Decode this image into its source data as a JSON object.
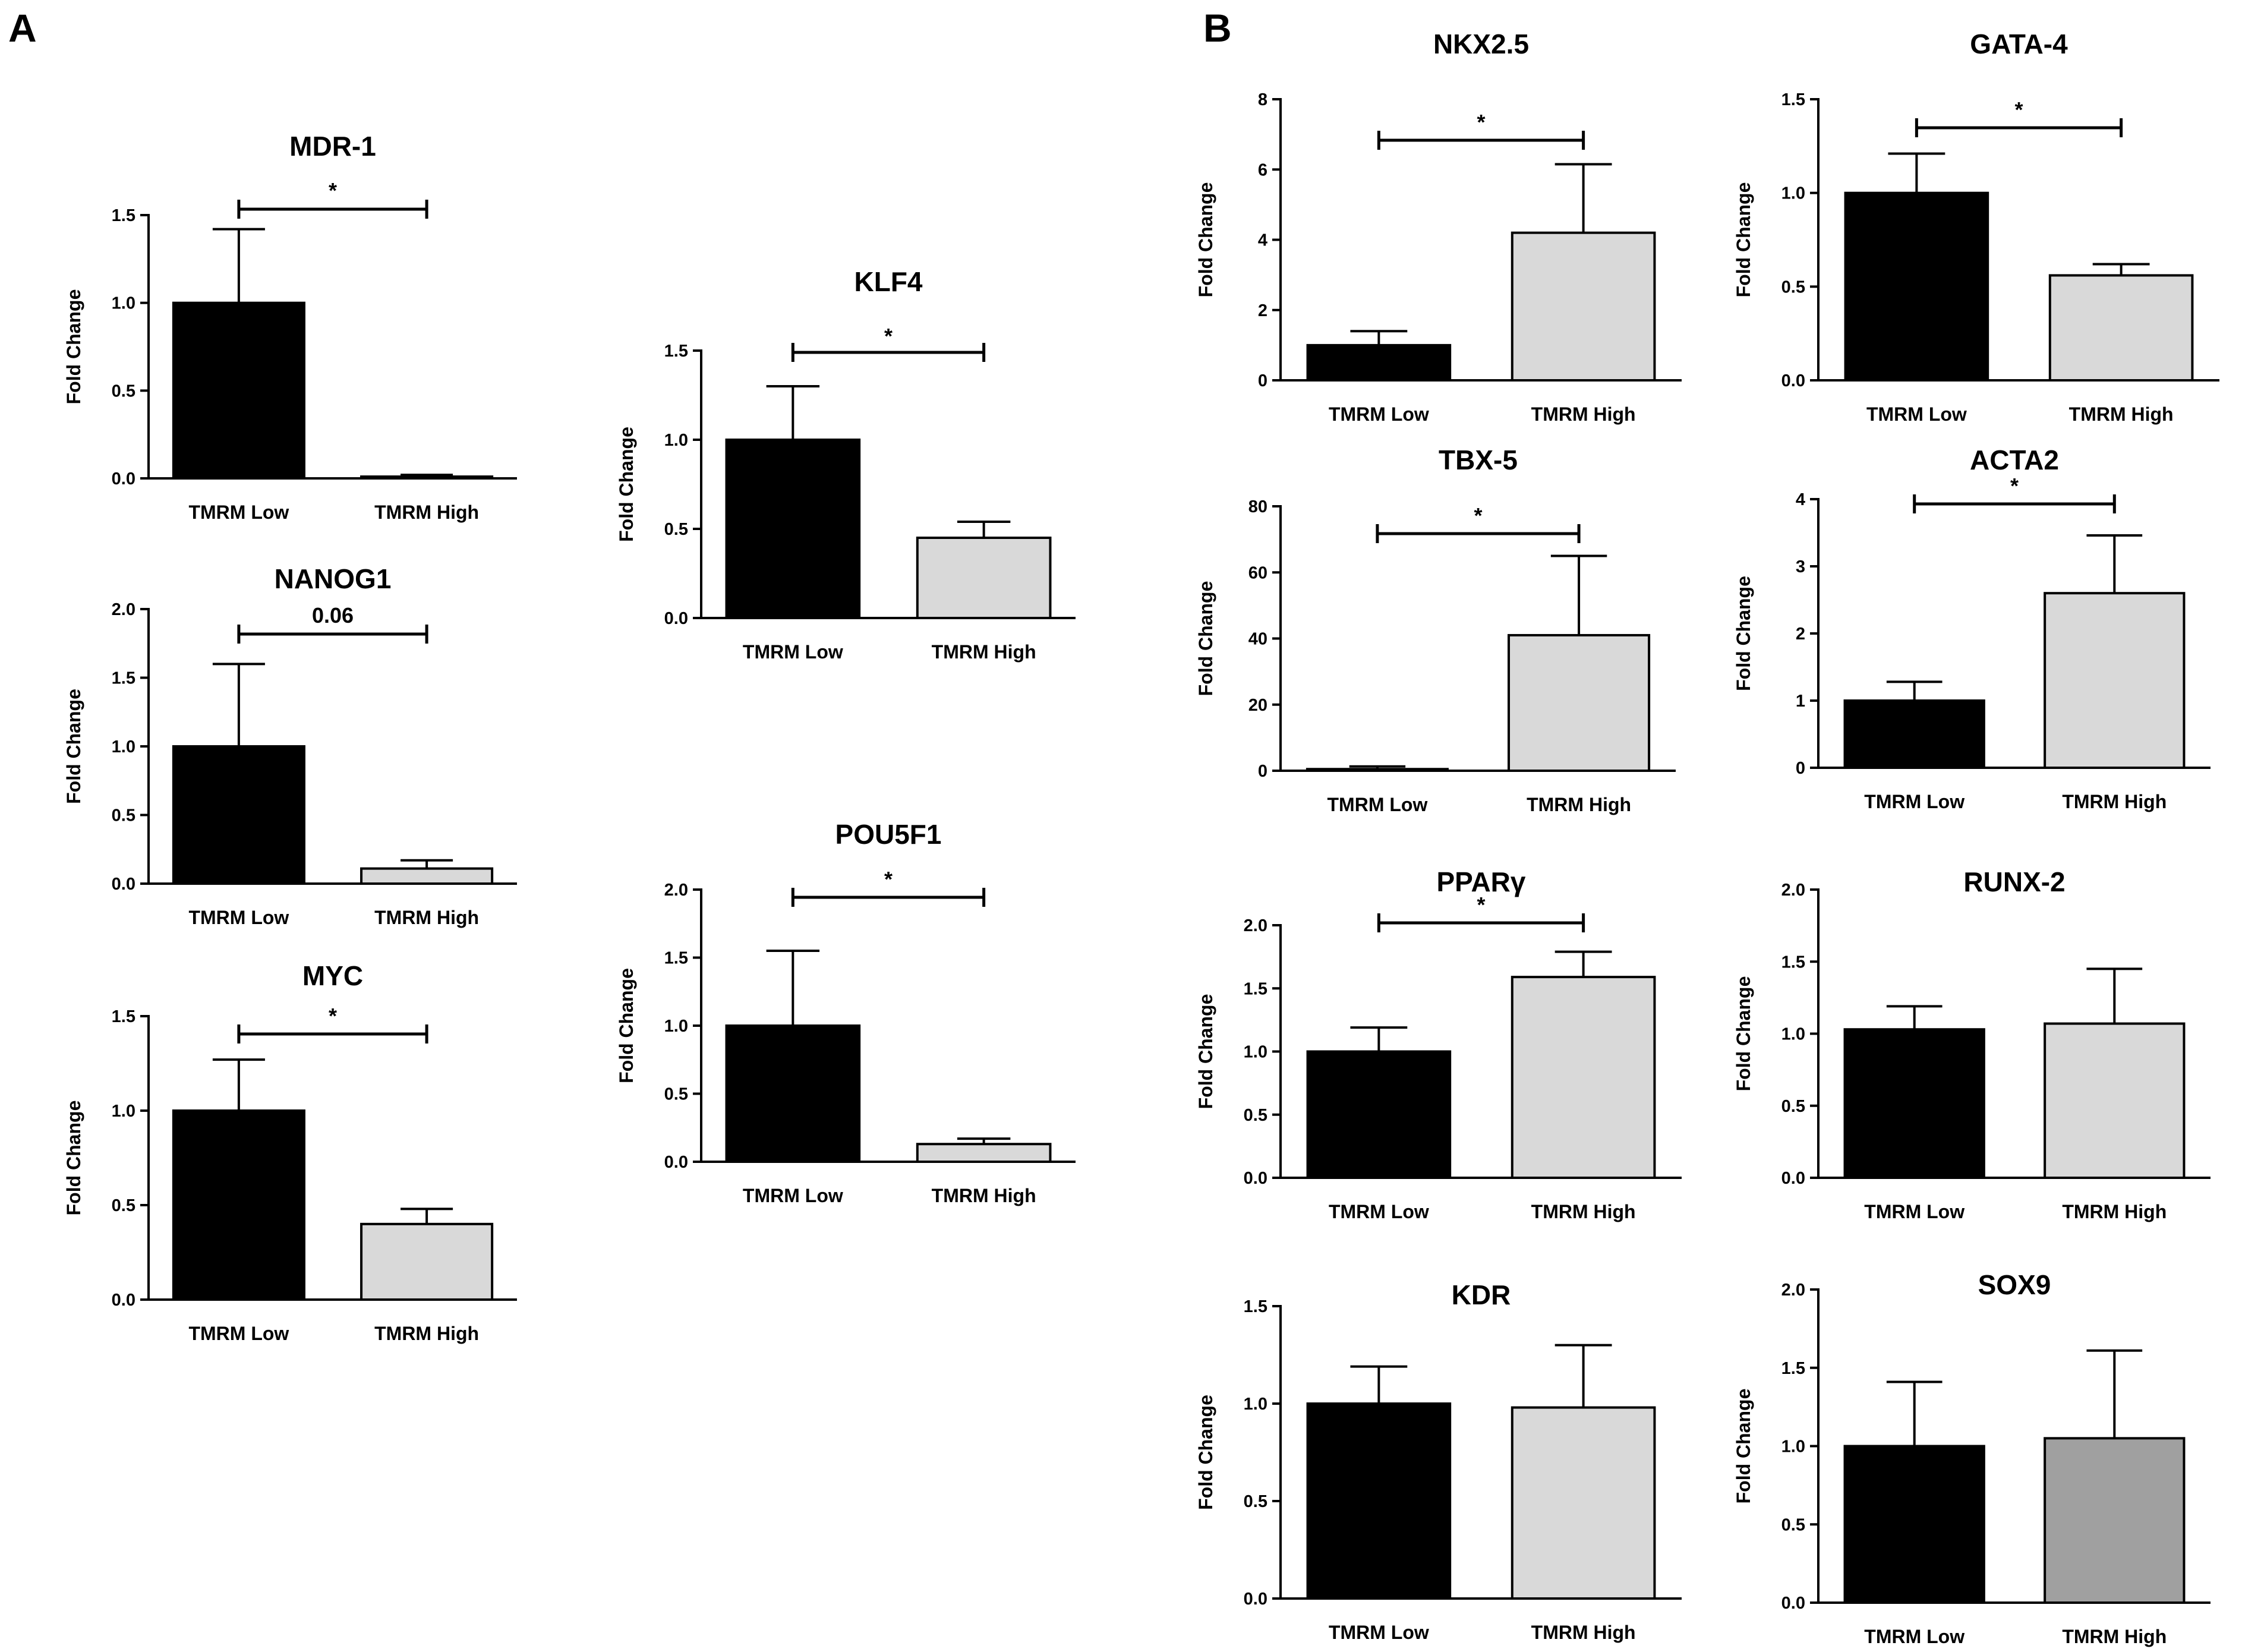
{
  "panels": [
    {
      "id": "A",
      "label": "A"
    },
    {
      "id": "B",
      "label": "B"
    }
  ],
  "colors": {
    "low": "#000000",
    "high": "#d9d9d9",
    "high_alt": "#a0a0a0",
    "axis": "#000000"
  },
  "chart_data": [
    {
      "id": "mdr1",
      "panel": "A",
      "type": "bar",
      "title": "MDR-1",
      "xlabel": "",
      "ylabel": "Fold Change",
      "categories": [
        "TMRM Low",
        "TMRM High"
      ],
      "values": [
        1.0,
        0.01
      ],
      "errors": [
        0.42,
        0.01
      ],
      "ylim": [
        0,
        1.5
      ],
      "yticks": [
        0.0,
        0.5,
        1.0,
        1.5
      ],
      "ytick_labels": [
        "0.0",
        "0.5",
        "1.0",
        "1.5"
      ],
      "significance": "*"
    },
    {
      "id": "nanog1",
      "panel": "A",
      "type": "bar",
      "title": "NANOG1",
      "xlabel": "",
      "ylabel": "Fold Change",
      "categories": [
        "TMRM Low",
        "TMRM High"
      ],
      "values": [
        1.0,
        0.11
      ],
      "errors": [
        0.6,
        0.06
      ],
      "ylim": [
        0,
        2.0
      ],
      "yticks": [
        0.0,
        0.5,
        1.0,
        1.5,
        2.0
      ],
      "ytick_labels": [
        "0.0",
        "0.5",
        "1.0",
        "1.5",
        "2.0"
      ],
      "significance": "0.06"
    },
    {
      "id": "myc",
      "panel": "A",
      "type": "bar",
      "title": "MYC",
      "xlabel": "",
      "ylabel": "Fold Change",
      "categories": [
        "TMRM Low",
        "TMRM High"
      ],
      "values": [
        1.0,
        0.4
      ],
      "errors": [
        0.27,
        0.08
      ],
      "ylim": [
        0,
        1.5
      ],
      "yticks": [
        0.0,
        0.5,
        1.0,
        1.5
      ],
      "ytick_labels": [
        "0.0",
        "0.5",
        "1.0",
        "1.5"
      ],
      "significance": "*"
    },
    {
      "id": "klf4",
      "panel": "A",
      "type": "bar",
      "title": "KLF4",
      "xlabel": "",
      "ylabel": "Fold Change",
      "categories": [
        "TMRM Low",
        "TMRM High"
      ],
      "values": [
        1.0,
        0.45
      ],
      "errors": [
        0.3,
        0.09
      ],
      "ylim": [
        0,
        1.5
      ],
      "yticks": [
        0.0,
        0.5,
        1.0,
        1.5
      ],
      "ytick_labels": [
        "0.0",
        "0.5",
        "1.0",
        "1.5"
      ],
      "significance": "*"
    },
    {
      "id": "pou5f1",
      "panel": "A",
      "type": "bar",
      "title": "POU5F1",
      "xlabel": "",
      "ylabel": "Fold Change",
      "categories": [
        "TMRM Low",
        "TMRM High"
      ],
      "values": [
        1.0,
        0.13
      ],
      "errors": [
        0.55,
        0.04
      ],
      "ylim": [
        0,
        2.0
      ],
      "yticks": [
        0.0,
        0.5,
        1.0,
        1.5,
        2.0
      ],
      "ytick_labels": [
        "0.0",
        "0.5",
        "1.0",
        "1.5",
        "2.0"
      ],
      "significance": "*"
    },
    {
      "id": "nkx25",
      "panel": "B",
      "type": "bar",
      "title": "NKX2.5",
      "xlabel": "",
      "ylabel": "Fold Change",
      "categories": [
        "TMRM Low",
        "TMRM High"
      ],
      "values": [
        1.0,
        4.2
      ],
      "errors": [
        0.4,
        1.95
      ],
      "ylim": [
        0,
        8
      ],
      "yticks": [
        0,
        2,
        4,
        6,
        8
      ],
      "ytick_labels": [
        "0",
        "2",
        "4",
        "6",
        "8"
      ],
      "significance": "*"
    },
    {
      "id": "gata4",
      "panel": "B",
      "type": "bar",
      "title": "GATA-4",
      "xlabel": "",
      "ylabel": "Fold Change",
      "categories": [
        "TMRM Low",
        "TMRM High"
      ],
      "values": [
        1.0,
        0.56
      ],
      "errors": [
        0.21,
        0.06
      ],
      "ylim": [
        0,
        1.5
      ],
      "yticks": [
        0.0,
        0.5,
        1.0,
        1.5
      ],
      "ytick_labels": [
        "0.0",
        "0.5",
        "1.0",
        "1.5"
      ],
      "significance": "*"
    },
    {
      "id": "tbx5",
      "panel": "B",
      "type": "bar",
      "title": "TBX-5",
      "xlabel": "",
      "ylabel": "Fold Change",
      "categories": [
        "TMRM Low",
        "TMRM High"
      ],
      "values": [
        0.5,
        41
      ],
      "errors": [
        0.8,
        24
      ],
      "ylim": [
        0,
        80
      ],
      "yticks": [
        0,
        20,
        40,
        60,
        80
      ],
      "ytick_labels": [
        "0",
        "20",
        "40",
        "60",
        "80"
      ],
      "significance": "*"
    },
    {
      "id": "acta2",
      "panel": "B",
      "type": "bar",
      "title": "ACTA2",
      "xlabel": "",
      "ylabel": "Fold Change",
      "categories": [
        "TMRM Low",
        "TMRM High"
      ],
      "values": [
        1.0,
        2.6
      ],
      "errors": [
        0.28,
        0.86
      ],
      "ylim": [
        0,
        4
      ],
      "yticks": [
        0,
        1,
        2,
        3,
        4
      ],
      "ytick_labels": [
        "0",
        "1",
        "2",
        "3",
        "4"
      ],
      "significance": "*"
    },
    {
      "id": "ppary",
      "panel": "B",
      "type": "bar",
      "title": "PPARγ",
      "xlabel": "",
      "ylabel": "Fold Change",
      "categories": [
        "TMRM Low",
        "TMRM High"
      ],
      "values": [
        1.0,
        1.59
      ],
      "errors": [
        0.19,
        0.2
      ],
      "ylim": [
        0,
        2.0
      ],
      "yticks": [
        0.0,
        0.5,
        1.0,
        1.5,
        2.0
      ],
      "ytick_labels": [
        "0.0",
        "0.5",
        "1.0",
        "1.5",
        "2.0"
      ],
      "significance": "*"
    },
    {
      "id": "runx2",
      "panel": "B",
      "type": "bar",
      "title": "RUNX-2",
      "xlabel": "",
      "ylabel": "Fold Change",
      "categories": [
        "TMRM Low",
        "TMRM High"
      ],
      "values": [
        1.03,
        1.07
      ],
      "errors": [
        0.16,
        0.38
      ],
      "ylim": [
        0,
        2.0
      ],
      "yticks": [
        0.0,
        0.5,
        1.0,
        1.5,
        2.0
      ],
      "ytick_labels": [
        "0.0",
        "0.5",
        "1.0",
        "1.5",
        "2.0"
      ],
      "significance": ""
    },
    {
      "id": "kdr",
      "panel": "B",
      "type": "bar",
      "title": "KDR",
      "xlabel": "",
      "ylabel": "Fold Change",
      "categories": [
        "TMRM Low",
        "TMRM High"
      ],
      "values": [
        1.0,
        0.98
      ],
      "errors": [
        0.19,
        0.32
      ],
      "ylim": [
        0,
        1.5
      ],
      "yticks": [
        0.0,
        0.5,
        1.0,
        1.5
      ],
      "ytick_labels": [
        "0.0",
        "0.5",
        "1.0",
        "1.5"
      ],
      "significance": ""
    },
    {
      "id": "sox9",
      "panel": "B",
      "type": "bar",
      "title": "SOX9",
      "xlabel": "",
      "ylabel": "Fold Change",
      "categories": [
        "TMRM Low",
        "TMRM High"
      ],
      "values": [
        1.0,
        1.05
      ],
      "errors": [
        0.41,
        0.56
      ],
      "ylim": [
        0,
        2.0
      ],
      "yticks": [
        0.0,
        0.5,
        1.0,
        1.5,
        2.0
      ],
      "ytick_labels": [
        "0.0",
        "0.5",
        "1.0",
        "1.5",
        "2.0"
      ],
      "significance": "",
      "high_color_key": "high_alt"
    }
  ]
}
